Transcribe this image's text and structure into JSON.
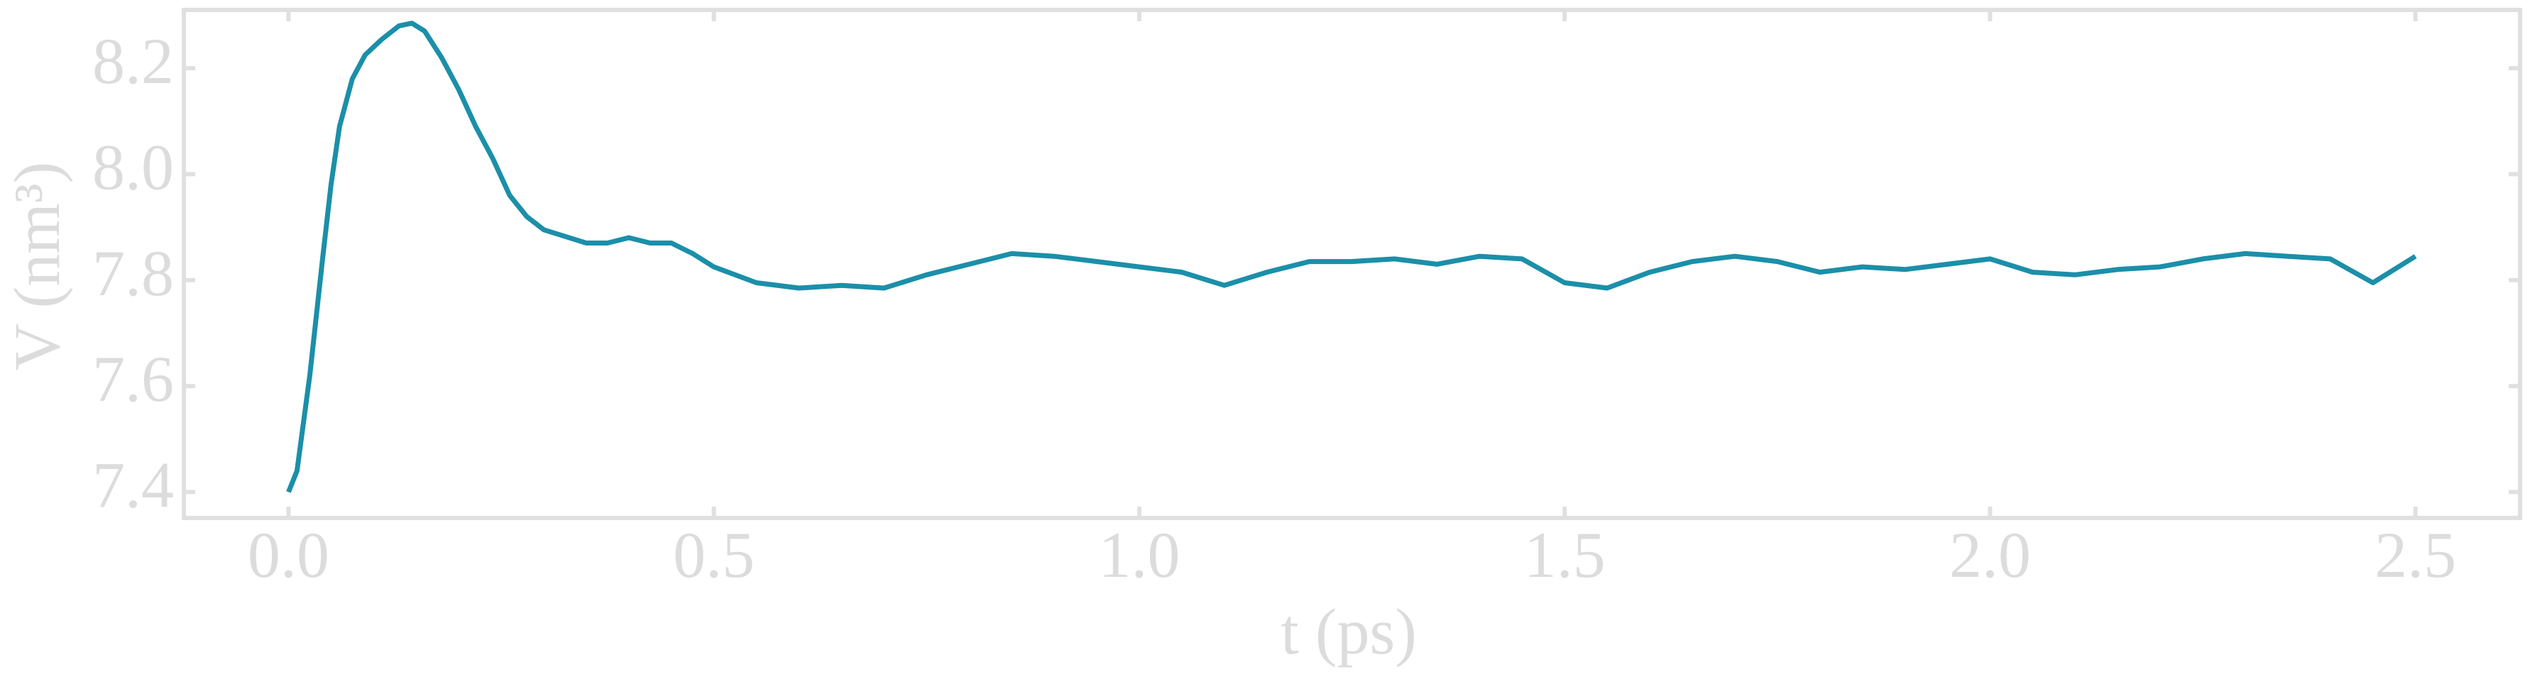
{
  "chart_data": {
    "type": "line",
    "xlabel": "t (ps)",
    "ylabel": "V (nm³)",
    "xlim": [
      -0.123,
      2.623
    ],
    "ylim": [
      7.351,
      8.31
    ],
    "xticks": [
      {
        "value": 0,
        "label": "0.0"
      },
      0.5,
      {
        "value": 1,
        "label": "1.0"
      },
      1.5,
      {
        "value": 2,
        "label": "2.0"
      },
      2.5
    ],
    "yticks": [
      7.4,
      7.6,
      7.8,
      {
        "value": 8,
        "label": "8.0"
      },
      8.2
    ],
    "series": [
      {
        "color": "#1b8fa9",
        "x": [
          0,
          0.01,
          0.025,
          0.04,
          0.05,
          0.06,
          0.075,
          0.09,
          0.11,
          0.13,
          0.145,
          0.16,
          0.18,
          0.2,
          0.22,
          0.24,
          0.26,
          0.28,
          0.3,
          0.32,
          0.35,
          0.375,
          0.4,
          0.425,
          0.45,
          0.475,
          0.5,
          0.55,
          0.6,
          0.65,
          0.7,
          0.75,
          0.8,
          0.85,
          0.9,
          0.95,
          1.0,
          1.05,
          1.1,
          1.15,
          1.2,
          1.25,
          1.3,
          1.35,
          1.4,
          1.45,
          1.5,
          1.55,
          1.6,
          1.65,
          1.7,
          1.75,
          1.8,
          1.85,
          1.9,
          1.95,
          2.0,
          2.05,
          2.1,
          2.15,
          2.2,
          2.25,
          2.3,
          2.35,
          2.4,
          2.45,
          2.5
        ],
        "values": [
          7.4,
          7.44,
          7.62,
          7.84,
          7.98,
          8.09,
          8.18,
          8.225,
          8.255,
          8.28,
          8.285,
          8.27,
          8.22,
          8.16,
          8.09,
          8.03,
          7.96,
          7.92,
          7.895,
          7.885,
          7.87,
          7.87,
          7.88,
          7.87,
          7.87,
          7.85,
          7.825,
          7.795,
          7.785,
          7.79,
          7.785,
          7.81,
          7.83,
          7.85,
          7.845,
          7.835,
          7.825,
          7.815,
          7.79,
          7.815,
          7.835,
          7.835,
          7.84,
          7.83,
          7.845,
          7.84,
          7.795,
          7.785,
          7.815,
          7.835,
          7.845,
          7.835,
          7.815,
          7.825,
          7.82,
          7.83,
          7.84,
          7.815,
          7.81,
          7.82,
          7.825,
          7.84,
          7.85,
          7.845,
          7.84,
          7.795,
          7.845
        ]
      }
    ]
  }
}
